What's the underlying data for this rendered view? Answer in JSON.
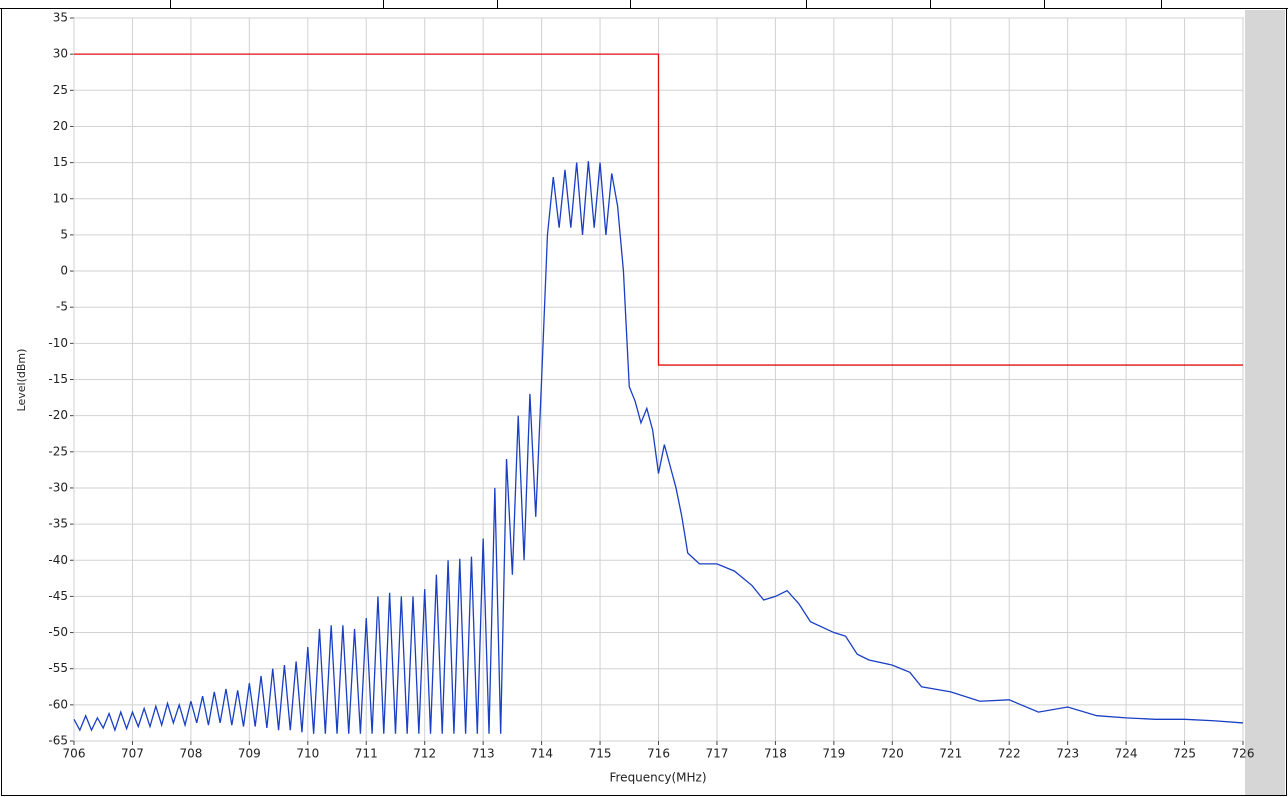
{
  "chart_data": {
    "type": "line",
    "xlabel": "Level(dBm)",
    "ylabel_x": "Frequency(MHz)",
    "xlim": [
      706,
      726
    ],
    "xticks": [
      706,
      707,
      708,
      709,
      710,
      711,
      712,
      713,
      714,
      715,
      716,
      717,
      718,
      719,
      720,
      721,
      722,
      723,
      724,
      725,
      726
    ],
    "ylim": [
      -65,
      35
    ],
    "yticks": [
      -65,
      -60,
      -55,
      -50,
      -45,
      -40,
      -35,
      -30,
      -25,
      -20,
      -15,
      -10,
      -5,
      0,
      5,
      10,
      15,
      20,
      25,
      30,
      35
    ],
    "grid": true,
    "series": [
      {
        "color": "#1a3fc4",
        "x": [
          706.0,
          706.1,
          706.2,
          706.3,
          706.4,
          706.5,
          706.6,
          706.7,
          706.8,
          706.9,
          707.0,
          707.1,
          707.2,
          707.3,
          707.4,
          707.5,
          707.6,
          707.7,
          707.8,
          707.9,
          708.0,
          708.1,
          708.2,
          708.3,
          708.4,
          708.5,
          708.6,
          708.7,
          708.8,
          708.9,
          709.0,
          709.1,
          709.2,
          709.3,
          709.4,
          709.5,
          709.6,
          709.7,
          709.8,
          709.9,
          710.0,
          710.1,
          710.2,
          710.3,
          710.4,
          710.5,
          710.6,
          710.7,
          710.8,
          710.9,
          711.0,
          711.1,
          711.2,
          711.3,
          711.4,
          711.5,
          711.6,
          711.7,
          711.8,
          711.9,
          712.0,
          712.1,
          712.2,
          712.3,
          712.4,
          712.5,
          712.6,
          712.7,
          712.8,
          712.9,
          713.0,
          713.1,
          713.2,
          713.3,
          713.4,
          713.5,
          713.6,
          713.7,
          713.8,
          713.9,
          714.0,
          714.1,
          714.2,
          714.3,
          714.4,
          714.5,
          714.6,
          714.7,
          714.8,
          714.9,
          715.0,
          715.1,
          715.2,
          715.3,
          715.4,
          715.5,
          715.6,
          715.7,
          715.8,
          715.9,
          716.0,
          716.1,
          716.2,
          716.3,
          716.4,
          716.5,
          716.7,
          717.0,
          717.3,
          717.6,
          717.8,
          718.0,
          718.2,
          718.4,
          718.6,
          719.0,
          719.2,
          719.4,
          719.6,
          720.0,
          720.3,
          720.5,
          721.0,
          721.5,
          722.0,
          722.5,
          723.0,
          723.5,
          724.0,
          724.5,
          725.0,
          725.5,
          726.0
        ],
        "values": [
          -62,
          -63.5,
          -61.5,
          -63.5,
          -61.8,
          -63.2,
          -61.2,
          -63.5,
          -61,
          -63.3,
          -61,
          -63,
          -60.5,
          -63,
          -60.2,
          -62.8,
          -59.8,
          -62.5,
          -60,
          -62.8,
          -59.5,
          -62.5,
          -58.8,
          -62.8,
          -58.2,
          -62.5,
          -57.8,
          -62.8,
          -58,
          -63,
          -57,
          -63,
          -56,
          -63.2,
          -55,
          -63.5,
          -54.5,
          -63.5,
          -54,
          -63.8,
          -52,
          -64,
          -49.5,
          -64,
          -49,
          -64,
          -49,
          -64,
          -49.5,
          -64,
          -48,
          -64,
          -45,
          -64,
          -44.5,
          -64,
          -45,
          -64,
          -45,
          -64,
          -44,
          -64,
          -42,
          -64,
          -40,
          -64,
          -39.8,
          -64,
          -39.5,
          -64,
          -37,
          -64,
          -30,
          -64,
          -26,
          -42,
          -20,
          -40,
          -17,
          -34,
          -15,
          5,
          13,
          6,
          14,
          6,
          15,
          5,
          15.2,
          6,
          15,
          5,
          13.5,
          9,
          0,
          -16,
          -18,
          -21,
          -19,
          -22,
          -28,
          -24,
          -27,
          -30,
          -34,
          -39,
          -40.5,
          -40.5,
          -41.5,
          -43.5,
          -45.5,
          -45,
          -44.2,
          -46,
          -48.5,
          -50,
          -50.5,
          -53,
          -53.8,
          -54.5,
          -55.5,
          -57.5,
          -58.2,
          -59.5,
          -59.3,
          -61,
          -60.3,
          -61.5,
          -61.8,
          -62,
          -62,
          -62.2,
          -62.5
        ]
      },
      {
        "color": "#e01010",
        "x": [
          706,
          716,
          716,
          726
        ],
        "values": [
          30,
          30,
          -13,
          -13
        ]
      }
    ]
  }
}
